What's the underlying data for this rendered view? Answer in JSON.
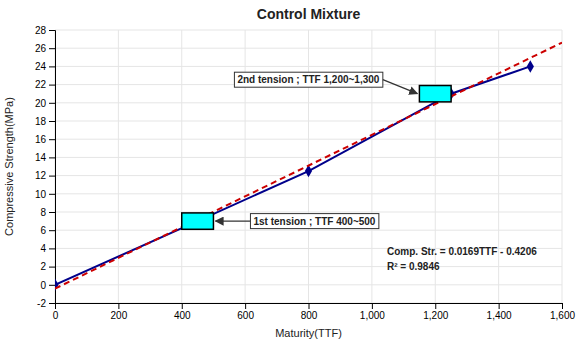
{
  "chart_data": {
    "type": "line",
    "title": "Control Mixture",
    "xlabel": "Maturity(TTF)",
    "ylabel": "Compressive Strength(MPa)",
    "xlim": [
      0,
      1600
    ],
    "ylim": [
      -2,
      28
    ],
    "xticks": [
      0,
      200,
      400,
      600,
      800,
      {
        "value": 1000,
        "label": "1,000"
      },
      {
        "value": 1200,
        "label": "1,200"
      },
      {
        "value": 1400,
        "label": "1,400"
      },
      {
        "value": 1600,
        "label": "1,600"
      }
    ],
    "yticks": [
      -2,
      0,
      2,
      4,
      6,
      8,
      10,
      12,
      14,
      16,
      18,
      20,
      22,
      24,
      26,
      28
    ],
    "grid": true,
    "series": [
      {
        "x": [
          0,
          450,
          800,
          1250,
          1500
        ],
        "values": [
          0,
          7.0,
          12.5,
          21.0,
          24.0
        ],
        "color": "#00008B",
        "marker": "diamond",
        "line_style": "solid"
      },
      {
        "x": [
          0,
          1600
        ],
        "values": [
          -0.4206,
          26.6194
        ],
        "color": "#CC0000",
        "line_style": "dashed"
      }
    ],
    "highlights": [
      {
        "x": 450,
        "y": 7.0,
        "width": 100,
        "height": 1.8,
        "color": "#00FFFF",
        "label": "1st tension ; TTF 400~500"
      },
      {
        "x": 1200,
        "y": 21.0,
        "width": 100,
        "height": 1.8,
        "color": "#00FFFF",
        "label": "2nd tension ; TTF 1,200~1,300"
      }
    ],
    "annotations": [
      "Comp. Str. = 0.0169TTF - 0.4206",
      "R² = 0.9846"
    ]
  }
}
